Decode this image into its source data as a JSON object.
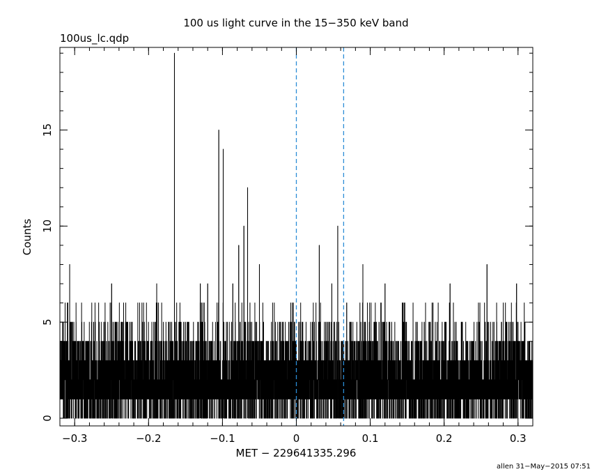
{
  "chart_data": {
    "type": "line",
    "step": true,
    "title": "100 us light curve in the 15−350 keV band",
    "subtitle": "100us_lc.qdp",
    "xlabel": "MET − 229641335.296",
    "ylabel": "Counts",
    "xlim": [
      -0.32,
      0.32
    ],
    "ylim": [
      -0.4,
      19.3
    ],
    "bin_width": 0.0001,
    "xticks": [
      -0.3,
      -0.2,
      -0.1,
      0,
      0.1,
      0.2,
      0.3
    ],
    "xtick_labels": [
      "−0.3",
      "−0.2",
      "−0.1",
      "0",
      "0.1",
      "0.2",
      "0.3"
    ],
    "yticks": [
      0,
      5,
      10,
      15
    ],
    "ytick_labels": [
      "0",
      "5",
      "10",
      "15"
    ],
    "x_minor_step": 0.02,
    "y_minor_step": 1,
    "grid": false,
    "legend": "none",
    "line_color": "#000000",
    "vlines": [
      {
        "x": 0.0,
        "color": "#2b8cd6",
        "style": "dashed"
      },
      {
        "x": 0.064,
        "color": "#2b8cd6",
        "style": "dashed"
      }
    ],
    "notable_peaks": [
      {
        "x": -0.3068,
        "y": 8
      },
      {
        "x": -0.25,
        "y": 7
      },
      {
        "x": -0.189,
        "y": 7
      },
      {
        "x": -0.165,
        "y": 19
      },
      {
        "x": -0.13,
        "y": 7
      },
      {
        "x": -0.12,
        "y": 7
      },
      {
        "x": -0.105,
        "y": 15
      },
      {
        "x": -0.099,
        "y": 14
      },
      {
        "x": -0.086,
        "y": 7
      },
      {
        "x": -0.078,
        "y": 9
      },
      {
        "x": -0.071,
        "y": 10
      },
      {
        "x": -0.066,
        "y": 12
      },
      {
        "x": -0.05,
        "y": 8
      },
      {
        "x": 0.031,
        "y": 9
      },
      {
        "x": 0.048,
        "y": 7
      },
      {
        "x": 0.056,
        "y": 10
      },
      {
        "x": 0.09,
        "y": 8
      },
      {
        "x": 0.12,
        "y": 7
      },
      {
        "x": 0.208,
        "y": 7
      },
      {
        "x": 0.258,
        "y": 8
      },
      {
        "x": 0.298,
        "y": 7
      }
    ]
  },
  "footer": "allen 31−May−2015 07:51"
}
